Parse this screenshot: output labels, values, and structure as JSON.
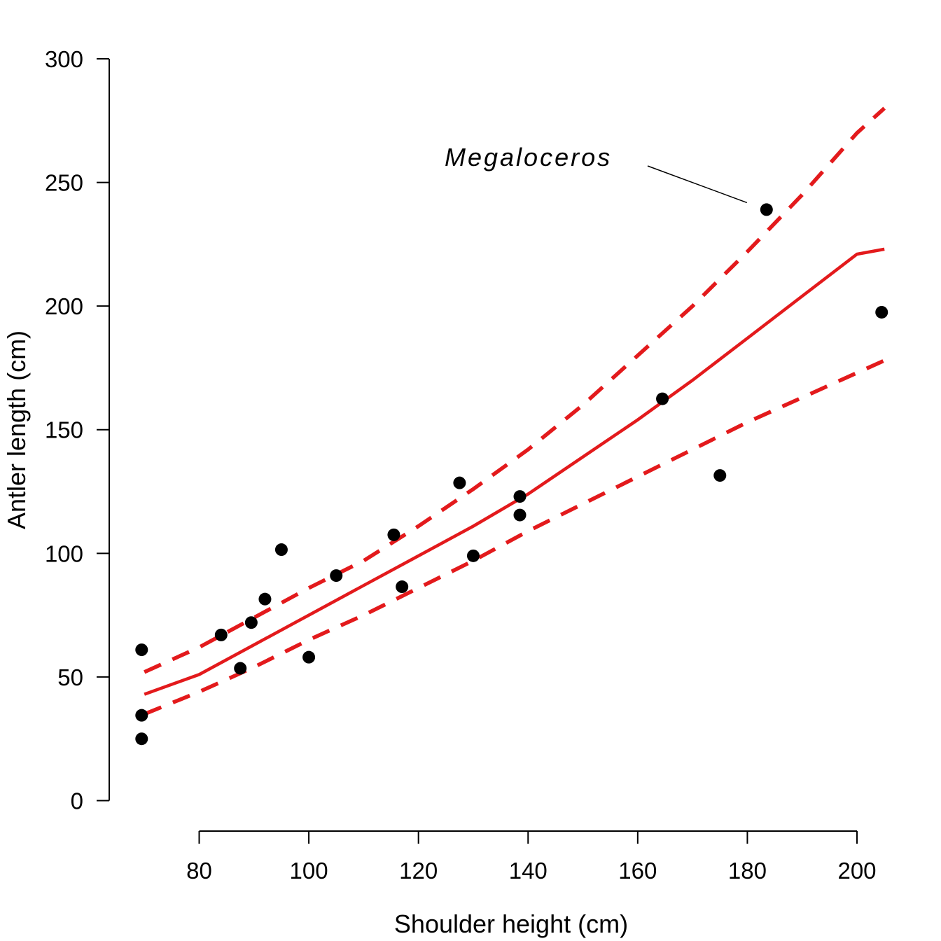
{
  "chart_data": {
    "type": "scatter",
    "xlabel": "Shoulder height (cm)",
    "ylabel": "Antler length (cm)",
    "xlim": [
      70,
      205
    ],
    "ylim": [
      0,
      300
    ],
    "x_ticks": [
      "80",
      "100",
      "120",
      "140",
      "160",
      "180",
      "200"
    ],
    "y_ticks": [
      "0",
      "50",
      "100",
      "150",
      "200",
      "250",
      "300"
    ],
    "grid": false,
    "points": [
      {
        "x": 69.5,
        "y": 61
      },
      {
        "x": 69.5,
        "y": 34.5
      },
      {
        "x": 69.5,
        "y": 25
      },
      {
        "x": 84,
        "y": 67
      },
      {
        "x": 87.5,
        "y": 53.5
      },
      {
        "x": 89.5,
        "y": 72
      },
      {
        "x": 92,
        "y": 81.5
      },
      {
        "x": 95,
        "y": 101.5
      },
      {
        "x": 100,
        "y": 58
      },
      {
        "x": 105,
        "y": 91
      },
      {
        "x": 115.5,
        "y": 107.5
      },
      {
        "x": 117,
        "y": 86.5
      },
      {
        "x": 127.5,
        "y": 128.5
      },
      {
        "x": 130,
        "y": 99
      },
      {
        "x": 138.5,
        "y": 123
      },
      {
        "x": 138.5,
        "y": 115.5
      },
      {
        "x": 164.5,
        "y": 162.5
      },
      {
        "x": 175,
        "y": 131.5
      },
      {
        "x": 183.5,
        "y": 239
      },
      {
        "x": 204.5,
        "y": 197.5
      }
    ],
    "fit": {
      "x": [
        70,
        80,
        90,
        100,
        110,
        120,
        130,
        140,
        150,
        160,
        170,
        180,
        190,
        200,
        205
      ],
      "y": [
        43,
        51,
        63,
        75,
        87,
        99,
        111,
        124,
        139,
        154,
        170,
        187,
        204,
        221,
        223
      ]
    },
    "upper": {
      "x": [
        70,
        80,
        90,
        100,
        110,
        120,
        130,
        140,
        150,
        160,
        170,
        180,
        190,
        200,
        205
      ],
      "y": [
        52,
        62,
        74,
        86,
        97,
        111,
        126,
        142,
        160,
        180,
        200,
        222,
        245,
        270,
        280
      ]
    },
    "lower": {
      "x": [
        70,
        80,
        90,
        100,
        110,
        120,
        130,
        140,
        150,
        160,
        170,
        180,
        190,
        200,
        205
      ],
      "y": [
        35,
        44,
        54,
        65,
        75,
        86,
        97,
        109,
        120,
        131,
        142,
        153,
        163,
        173,
        178
      ]
    },
    "line_color": "#e31a1c",
    "point_color": "#000000",
    "annotation": {
      "text": "Megaloceros",
      "target": {
        "x": 183.5,
        "y": 239
      }
    }
  }
}
